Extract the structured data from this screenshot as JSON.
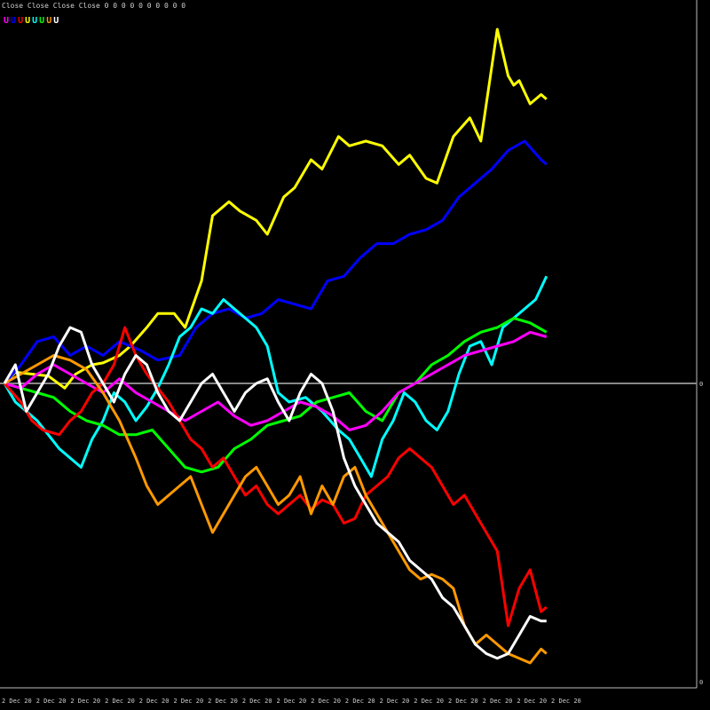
{
  "header": {
    "title": "Close Close Close Close 0 0 0 0 0 0 0 0 0 0"
  },
  "legend": [
    {
      "label": "U",
      "color": "#ff00ff"
    },
    {
      "label": "U",
      "color": "#0000ff"
    },
    {
      "label": "U",
      "color": "#ff0000"
    },
    {
      "label": "U",
      "color": "#ffff00"
    },
    {
      "label": "U",
      "color": "#00ffff"
    },
    {
      "label": "U",
      "color": "#00ff00"
    },
    {
      "label": "U",
      "color": "#ff9900"
    },
    {
      "label": "U",
      "color": "#ffffff"
    }
  ],
  "chart_data": {
    "type": "line",
    "y_zero_label": "0",
    "y_bottom_label": "0",
    "x_tick_labels": [
      "2 Dec 20",
      "2 Dec 20",
      "2 Dec 20",
      "2 Dec 20",
      "2 Dec 20",
      "2 Dec 20",
      "2 Dec 20",
      "2 Dec 20",
      "2 Dec 20",
      "2 Dec 20",
      "2 Dec 20",
      "2 Dec 20",
      "2 Dec 20",
      "2 Dec 20",
      "2 Dec 20",
      "2 Dec 20",
      "2 Dec 20",
      "2 Dec 20",
      "2 Dec 20",
      "2 Dec 20",
      "2 Dec 20",
      "2 Dec 20"
    ],
    "xlim": [
      0,
      100
    ],
    "ylim": [
      -350,
      400
    ],
    "series": [
      {
        "color": "#ffff00",
        "x": [
          0,
          2,
          5,
          8,
          11,
          13,
          16,
          18,
          21,
          23,
          26,
          28,
          31,
          33,
          36,
          38,
          41,
          43,
          46,
          48,
          51,
          53,
          56,
          58,
          61,
          63,
          66,
          69,
          72,
          74,
          77,
          79,
          82,
          85,
          87,
          90,
          92,
          93,
          94,
          96,
          98,
          99
        ],
        "y": [
          0,
          12,
          10,
          8,
          -5,
          10,
          20,
          22,
          30,
          40,
          60,
          75,
          75,
          60,
          110,
          180,
          195,
          185,
          175,
          160,
          200,
          210,
          240,
          230,
          265,
          255,
          260,
          255,
          235,
          245,
          220,
          215,
          265,
          285,
          260,
          380,
          330,
          320,
          325,
          300,
          310,
          305
        ]
      },
      {
        "color": "#0000ff",
        "x": [
          0,
          3,
          6,
          9,
          12,
          15,
          18,
          21,
          25,
          28,
          32,
          35,
          38,
          41,
          44,
          47,
          50,
          53,
          56,
          59,
          62,
          65,
          68,
          71,
          74,
          77,
          80,
          83,
          86,
          89,
          92,
          95,
          98,
          99
        ],
        "y": [
          0,
          20,
          45,
          50,
          30,
          40,
          30,
          45,
          35,
          25,
          30,
          60,
          75,
          80,
          70,
          75,
          90,
          85,
          80,
          110,
          115,
          135,
          150,
          150,
          160,
          165,
          175,
          200,
          215,
          230,
          250,
          260,
          240,
          235
        ]
      },
      {
        "color": "#00ffff",
        "x": [
          0,
          2,
          4,
          6,
          8,
          10,
          12,
          14,
          16,
          18,
          20,
          22,
          24,
          26,
          28,
          30,
          32,
          34,
          36,
          38,
          40,
          42,
          44,
          46,
          48,
          50,
          52,
          55,
          58,
          61,
          63,
          65,
          67,
          69,
          71,
          73,
          75,
          77,
          79,
          81,
          83,
          85,
          87,
          89,
          91,
          93,
          95,
          97,
          99
        ],
        "y": [
          0,
          -20,
          -30,
          -40,
          -55,
          -70,
          -80,
          -90,
          -60,
          -40,
          -10,
          -20,
          -40,
          -25,
          -5,
          20,
          50,
          60,
          80,
          75,
          90,
          80,
          70,
          60,
          40,
          -10,
          -20,
          -15,
          -30,
          -50,
          -60,
          -80,
          -100,
          -60,
          -40,
          -10,
          -20,
          -40,
          -50,
          -30,
          10,
          40,
          45,
          20,
          60,
          70,
          80,
          90,
          115
        ]
      },
      {
        "color": "#00ff00",
        "x": [
          0,
          3,
          6,
          9,
          12,
          15,
          18,
          21,
          24,
          27,
          30,
          33,
          36,
          39,
          42,
          45,
          48,
          51,
          54,
          57,
          60,
          63,
          66,
          69,
          72,
          75,
          78,
          81,
          84,
          87,
          90,
          93,
          96,
          99
        ],
        "y": [
          0,
          -5,
          -10,
          -15,
          -30,
          -40,
          -45,
          -55,
          -55,
          -50,
          -70,
          -90,
          -95,
          -90,
          -70,
          -60,
          -45,
          -40,
          -35,
          -20,
          -15,
          -10,
          -30,
          -40,
          -10,
          0,
          20,
          30,
          45,
          55,
          60,
          70,
          65,
          55
        ]
      },
      {
        "color": "#ff00ff",
        "x": [
          0,
          3,
          6,
          9,
          12,
          15,
          18,
          21,
          24,
          27,
          30,
          33,
          36,
          39,
          42,
          45,
          48,
          51,
          54,
          57,
          60,
          63,
          66,
          69,
          72,
          75,
          78,
          81,
          84,
          87,
          90,
          93,
          96,
          99
        ],
        "y": [
          0,
          -5,
          10,
          20,
          10,
          0,
          -10,
          5,
          -10,
          -20,
          -30,
          -40,
          -30,
          -20,
          -35,
          -45,
          -40,
          -30,
          -20,
          -25,
          -35,
          -50,
          -45,
          -30,
          -10,
          0,
          10,
          20,
          30,
          35,
          40,
          45,
          55,
          50
        ]
      },
      {
        "color": "#ff0000",
        "x": [
          0,
          3,
          5,
          7,
          10,
          12,
          14,
          16,
          18,
          20,
          22,
          24,
          26,
          28,
          30,
          32,
          34,
          36,
          38,
          40,
          42,
          44,
          46,
          48,
          50,
          52,
          54,
          56,
          58,
          60,
          62,
          64,
          66,
          68,
          70,
          72,
          74,
          76,
          78,
          80,
          82,
          84,
          86,
          88,
          90,
          92,
          94,
          96,
          98,
          99
        ],
        "y": [
          0,
          -20,
          -40,
          -50,
          -55,
          -40,
          -30,
          -10,
          0,
          20,
          60,
          30,
          10,
          -5,
          -20,
          -40,
          -60,
          -70,
          -90,
          -80,
          -100,
          -120,
          -110,
          -130,
          -140,
          -130,
          -120,
          -135,
          -125,
          -130,
          -150,
          -145,
          -120,
          -110,
          -100,
          -80,
          -70,
          -80,
          -90,
          -110,
          -130,
          -120,
          -140,
          -160,
          -180,
          -260,
          -220,
          -200,
          -245,
          -240
        ]
      },
      {
        "color": "#ff9900",
        "x": [
          0,
          3,
          6,
          9,
          12,
          15,
          18,
          21,
          24,
          26,
          28,
          30,
          32,
          34,
          36,
          38,
          40,
          42,
          44,
          46,
          48,
          50,
          52,
          54,
          56,
          58,
          60,
          62,
          64,
          66,
          68,
          70,
          72,
          74,
          76,
          78,
          80,
          82,
          84,
          86,
          88,
          90,
          92,
          94,
          96,
          98,
          99
        ],
        "y": [
          0,
          10,
          20,
          30,
          25,
          15,
          -10,
          -40,
          -80,
          -110,
          -130,
          -120,
          -110,
          -100,
          -130,
          -160,
          -140,
          -120,
          -100,
          -90,
          -110,
          -130,
          -120,
          -100,
          -140,
          -110,
          -130,
          -100,
          -90,
          -120,
          -140,
          -160,
          -180,
          -200,
          -210,
          -205,
          -210,
          -220,
          -260,
          -280,
          -270,
          -280,
          -290,
          -295,
          -300,
          -285,
          -290
        ]
      },
      {
        "color": "#ffffff",
        "x": [
          0,
          2,
          4,
          6,
          8,
          10,
          12,
          14,
          16,
          18,
          20,
          22,
          24,
          26,
          28,
          30,
          32,
          34,
          36,
          38,
          40,
          42,
          44,
          46,
          48,
          50,
          52,
          54,
          56,
          58,
          60,
          62,
          64,
          66,
          68,
          70,
          72,
          74,
          76,
          78,
          80,
          82,
          84,
          86,
          88,
          90,
          92,
          94,
          96,
          98,
          99
        ],
        "y": [
          0,
          20,
          -30,
          -10,
          10,
          40,
          60,
          55,
          20,
          0,
          -20,
          10,
          30,
          20,
          -10,
          -30,
          -40,
          -20,
          0,
          10,
          -10,
          -30,
          -10,
          0,
          5,
          -20,
          -40,
          -10,
          10,
          0,
          -30,
          -80,
          -110,
          -130,
          -150,
          -160,
          -170,
          -190,
          -200,
          -210,
          -230,
          -240,
          -260,
          -280,
          -290,
          -295,
          -290,
          -270,
          -250,
          -255,
          -255
        ]
      }
    ]
  }
}
